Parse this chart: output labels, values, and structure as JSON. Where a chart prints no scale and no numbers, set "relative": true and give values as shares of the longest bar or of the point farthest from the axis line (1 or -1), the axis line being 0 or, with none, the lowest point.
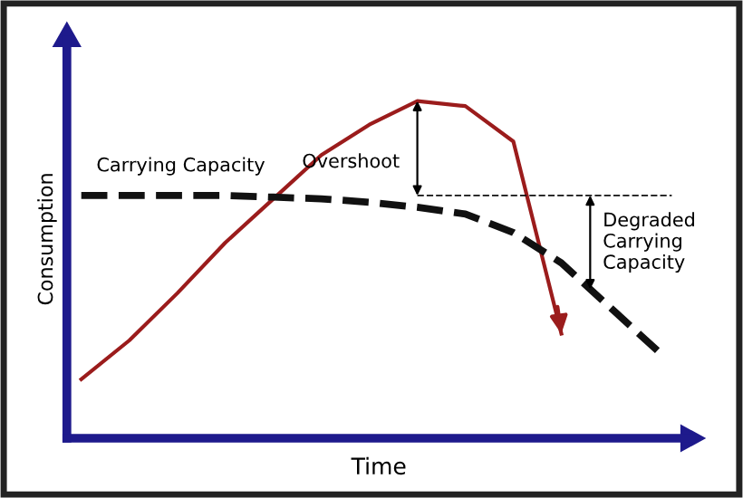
{
  "chart_data": {
    "type": "line",
    "relative": true,
    "xlabel": "Time",
    "ylabel": "Consumption",
    "categories": [
      null,
      null,
      null,
      null,
      null,
      null,
      null,
      null,
      null,
      null,
      null,
      null,
      null
    ],
    "series": [
      {
        "color": "#9b1c1c",
        "line_style": "solid",
        "values": [
          0.175,
          0.29,
          0.43,
          0.58,
          0.71,
          0.84,
          0.93,
          1.0,
          0.985,
          0.88,
          0.31,
          null,
          null
        ]
      },
      {
        "color": "#111111",
        "line_style": "dashed",
        "values": [
          0.72,
          0.72,
          0.72,
          0.72,
          0.715,
          0.71,
          0.7,
          0.685,
          0.665,
          0.61,
          0.52,
          0.39,
          0.26
        ]
      }
    ],
    "ref_lines": [
      {
        "axis": "y",
        "value": 0.72,
        "color": "#111111",
        "line_style": "dashed"
      }
    ],
    "annotations": [
      "Carrying Capacity",
      "Overshoot",
      "Degraded\nCarrying\nCapacity"
    ]
  }
}
